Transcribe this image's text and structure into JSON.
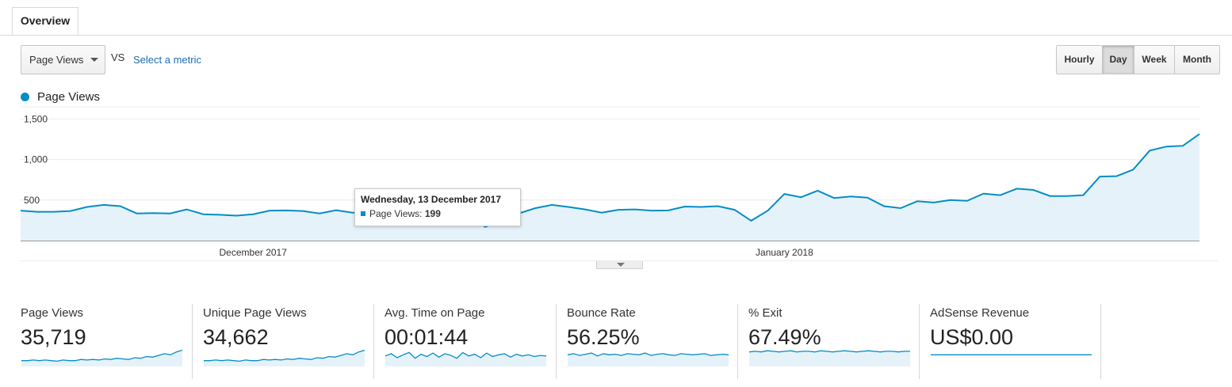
{
  "tabs": [
    {
      "label": "Overview"
    }
  ],
  "controls": {
    "metric_select_value": "Page Views",
    "vs_label": "VS",
    "select_metric_link": "Select a metric",
    "period_buttons": [
      "Hourly",
      "Day",
      "Week",
      "Month"
    ],
    "active_period": "Day"
  },
  "colors": {
    "accent": "#058dc7",
    "fill": "#e5f2f9",
    "link": "#1a6fb5"
  },
  "chart_data": {
    "type": "area",
    "series": [
      {
        "name": "Page Views",
        "values": [
          370,
          355,
          355,
          365,
          415,
          440,
          425,
          335,
          340,
          335,
          385,
          325,
          318,
          308,
          325,
          370,
          372,
          365,
          335,
          375,
          345,
          345,
          335,
          340,
          320,
          225,
          220,
          215,
          199,
          325,
          335,
          400,
          440,
          415,
          385,
          345,
          380,
          385,
          370,
          372,
          420,
          415,
          425,
          380,
          245,
          370,
          575,
          535,
          615,
          525,
          545,
          530,
          425,
          400,
          485,
          470,
          500,
          490,
          580,
          560,
          640,
          625,
          550,
          550,
          560,
          790,
          795,
          875,
          1110,
          1160,
          1170,
          1315
        ]
      }
    ],
    "x_tick_labels": [
      "December 2017",
      "January 2018"
    ],
    "y_ticks": [
      500,
      1000,
      1500
    ],
    "y_tick_labels": [
      "500",
      "1,000",
      "1,500"
    ],
    "ylim": [
      0,
      1650
    ],
    "legend": "top-left",
    "grid": true
  },
  "tooltip": {
    "date": "Wednesday, 13 December 2017",
    "metric": "Page Views:",
    "value": "199",
    "point_index": 28
  },
  "tiles": [
    {
      "label": "Page Views",
      "value": "35,719",
      "spark": [
        10,
        10,
        11,
        10,
        11,
        10,
        9,
        11,
        10,
        10,
        12,
        11,
        12,
        11,
        13,
        12,
        14,
        13,
        12,
        15,
        14,
        17,
        16,
        19,
        22,
        20,
        25,
        28
      ]
    },
    {
      "label": "Unique Page Views",
      "value": "34,662",
      "spark": [
        10,
        10,
        11,
        10,
        11,
        10,
        9,
        11,
        10,
        10,
        12,
        11,
        12,
        11,
        13,
        12,
        14,
        13,
        12,
        15,
        14,
        17,
        16,
        19,
        22,
        20,
        25,
        28
      ]
    },
    {
      "label": "Avg. Time on Page",
      "value": "00:01:44",
      "spark": [
        18,
        22,
        15,
        20,
        24,
        14,
        21,
        17,
        23,
        16,
        22,
        19,
        14,
        24,
        18,
        21,
        15,
        23,
        17,
        20,
        22,
        16,
        21,
        18,
        20,
        17,
        19,
        18
      ]
    },
    {
      "label": "Bounce Rate",
      "value": "56.25%",
      "spark": [
        20,
        22,
        19,
        21,
        23,
        18,
        22,
        20,
        21,
        19,
        22,
        21,
        20,
        23,
        19,
        21,
        22,
        20,
        19,
        22,
        21,
        20,
        21,
        22,
        19,
        20,
        21,
        20
      ]
    },
    {
      "label": "% Exit",
      "value": "67.49%",
      "spark": [
        25,
        26,
        25,
        27,
        26,
        25,
        26,
        27,
        25,
        26,
        26,
        25,
        27,
        26,
        25,
        26,
        27,
        26,
        25,
        26,
        27,
        26,
        25,
        26,
        26,
        25,
        26,
        26
      ]
    },
    {
      "label": "AdSense Revenue",
      "value": "US$0.00",
      "spark": [
        20,
        20,
        20,
        20,
        20,
        20,
        20,
        20,
        20,
        20,
        20,
        20,
        20,
        20,
        20,
        20,
        20,
        20,
        20,
        20,
        20,
        20,
        20,
        20,
        20,
        20,
        20,
        20
      ]
    }
  ]
}
